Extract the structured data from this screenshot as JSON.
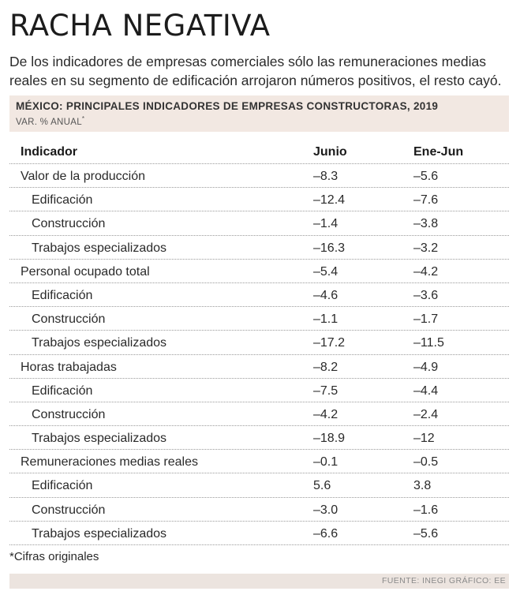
{
  "headline": "RACHA NEGATIVA",
  "subtitle": "De los indicadores de empresas comerciales sólo las remuneraciones medias reales en su segmento de edificación arrojaron números positivos, el resto cayó.",
  "chart_data": {
    "type": "table",
    "title": "MÉXICO: PRINCIPALES INDICADORES DE EMPRESAS CONSTRUCTORAS, 2019",
    "unit": "VAR. % ANUAL",
    "unit_mark": "*",
    "columns": [
      "Indicador",
      "Junio",
      "Ene-Jun"
    ],
    "rows": [
      {
        "indicador": "Valor de la producción",
        "junio": "–8.3",
        "ene_jun": "–5.6",
        "level": 0
      },
      {
        "indicador": "Edificación",
        "junio": "–12.4",
        "ene_jun": "–7.6",
        "level": 1
      },
      {
        "indicador": "Construcción",
        "junio": "–1.4",
        "ene_jun": "–3.8",
        "level": 1
      },
      {
        "indicador": "Trabajos especializados",
        "junio": "–16.3",
        "ene_jun": "–3.2",
        "level": 1
      },
      {
        "indicador": "Personal ocupado total",
        "junio": "–5.4",
        "ene_jun": "–4.2",
        "level": 0
      },
      {
        "indicador": "Edificación",
        "junio": "–4.6",
        "ene_jun": "–3.6",
        "level": 1
      },
      {
        "indicador": "Construcción",
        "junio": "–1.1",
        "ene_jun": "–1.7",
        "level": 1
      },
      {
        "indicador": "Trabajos especializados",
        "junio": "–17.2",
        "ene_jun": "–11.5",
        "level": 1
      },
      {
        "indicador": "Horas trabajadas",
        "junio": "–8.2",
        "ene_jun": "–4.9",
        "level": 0
      },
      {
        "indicador": "Edificación",
        "junio": "–7.5",
        "ene_jun": "–4.4",
        "level": 1
      },
      {
        "indicador": "Construcción",
        "junio": "–4.2",
        "ene_jun": "–2.4",
        "level": 1
      },
      {
        "indicador": "Trabajos especializados",
        "junio": "–18.9",
        "ene_jun": "–12",
        "level": 1
      },
      {
        "indicador": "Remuneraciones medias reales",
        "junio": "–0.1",
        "ene_jun": "–0.5",
        "level": 0
      },
      {
        "indicador": "Edificación",
        "junio": "5.6",
        "ene_jun": "3.8",
        "level": 1
      },
      {
        "indicador": "Construcción",
        "junio": "–3.0",
        "ene_jun": "–1.6",
        "level": 1
      },
      {
        "indicador": "Trabajos especializados",
        "junio": "–6.6",
        "ene_jun": "–5.6",
        "level": 1
      }
    ]
  },
  "footnote": "*Cifras originales",
  "source": "FUENTE: INEGI   GRÁFICO: EE"
}
